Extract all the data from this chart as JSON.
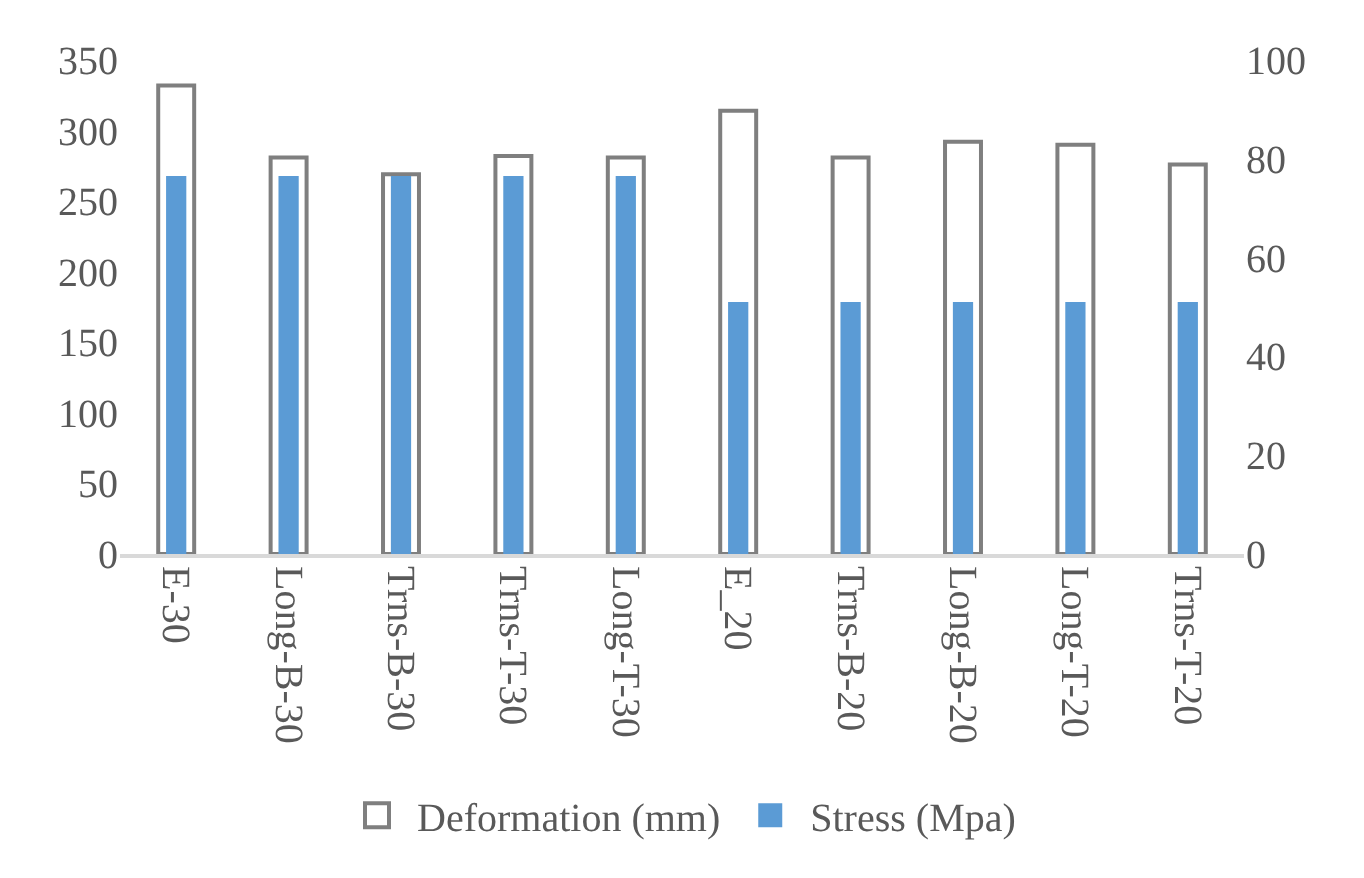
{
  "chart_data": {
    "type": "bar",
    "categories": [
      "E-30",
      "Long-B-30",
      "Trns-B-30",
      "Trns-T-30",
      "Long-T-30",
      "E_20",
      "Trns-B-20",
      "Long-B-20",
      "Long-T-20",
      "Trns-T-20"
    ],
    "series": [
      {
        "name": "Deformation (mm)",
        "color": "#ffffff",
        "values": [
          332,
          281,
          269,
          282,
          281,
          314,
          281,
          292,
          290,
          276
        ]
      },
      {
        "name": "Stress (Mpa)",
        "color": "#5b9bd5",
        "axis": "y2",
        "values": [
          76.5,
          76.5,
          76.5,
          76.5,
          76.5,
          51,
          51,
          51,
          51,
          51
        ]
      }
    ],
    "ylim": [
      0,
      350
    ],
    "yticks": [
      0,
      50,
      100,
      150,
      200,
      250,
      300,
      350
    ],
    "y2lim": [
      0,
      100
    ],
    "y2ticks": [
      0,
      20,
      40,
      60,
      80,
      100
    ],
    "legend": "bottom"
  }
}
